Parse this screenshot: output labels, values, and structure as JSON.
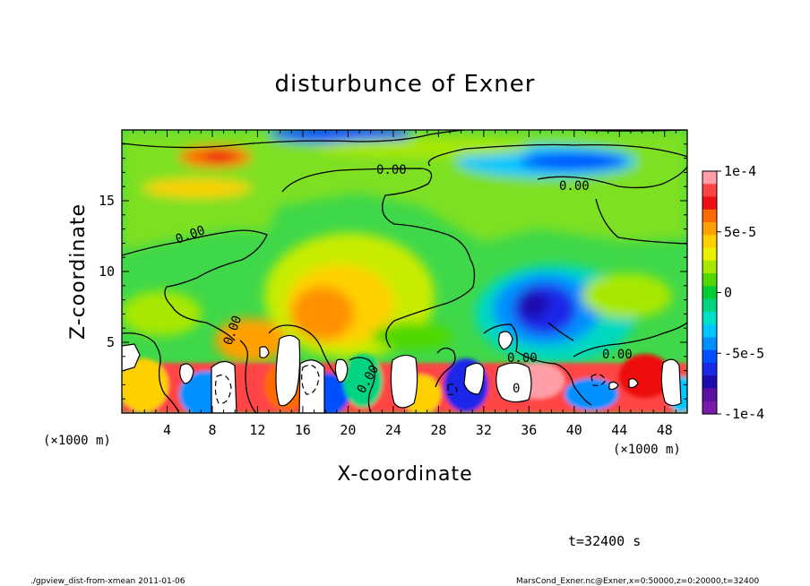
{
  "chart_data": {
    "type": "heatmap",
    "title": "disturbunce of Exner",
    "xlabel": "X-coordinate",
    "ylabel": "Z-coordinate",
    "x_unit": "(×1000 m)",
    "z_unit": "(×1000 m)",
    "xlim": [
      0,
      50
    ],
    "ylim": [
      0,
      20
    ],
    "x_ticks": [
      "4",
      "8",
      "12",
      "16",
      "20",
      "24",
      "28",
      "32",
      "36",
      "40",
      "44",
      "48"
    ],
    "y_ticks": [
      "5",
      "10",
      "15"
    ],
    "colorbar": {
      "min": -0.0001,
      "max": 0.0001,
      "tick_labels": [
        "1e-4",
        "5e-5",
        "0",
        "-5e-5",
        "-1e-4"
      ],
      "colors": [
        "#ff9ea6",
        "#ff4444",
        "#ee1111",
        "#ff6a00",
        "#ffa000",
        "#ffd000",
        "#eaf000",
        "#a8e800",
        "#50d800",
        "#00cc33",
        "#00d480",
        "#00e0c8",
        "#00c8ff",
        "#0090ff",
        "#0050ff",
        "#1a28e8",
        "#1c0cb0",
        "#5a10a0",
        "#7a1aaa"
      ]
    },
    "contour_labels": [
      "0.00",
      "0.00",
      "0.00",
      "0.00",
      "0.00",
      "0.00",
      "0"
    ],
    "features": [
      {
        "x": 8.5,
        "z": 18.0,
        "value": 8e-05
      },
      {
        "x": 17.5,
        "z": 6.5,
        "value": 7e-05
      },
      {
        "x": 19.0,
        "z": 8.5,
        "value": 5e-05
      },
      {
        "x": 37.0,
        "z": 7.5,
        "value": -9e-05
      },
      {
        "x": 20.0,
        "z": 19.6,
        "value": -8e-05
      },
      {
        "x": 40.5,
        "z": 18.0,
        "value": -7e-05
      }
    ],
    "time_label": "t=32400 s"
  },
  "footer": {
    "left": "./gpview_dist-from-xmean  2011-01-06",
    "right": "MarsCond_Exner.nc@Exner,x=0:50000,z=0:20000,t=32400"
  }
}
